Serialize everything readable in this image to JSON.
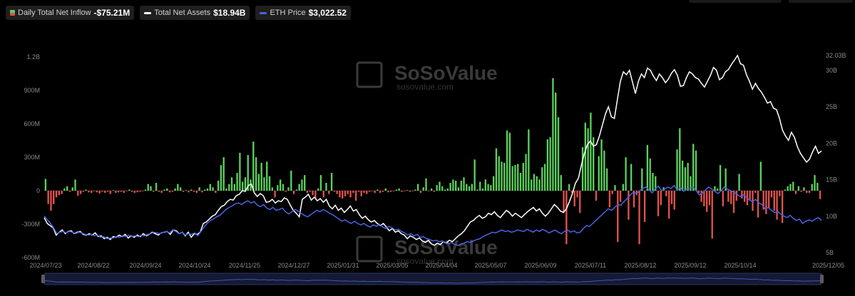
{
  "legend": {
    "inflow_label": "Daily Total Net Inflow",
    "inflow_value": "-$75.21M",
    "assets_label": "Total Net Assets",
    "assets_value": "$18.94B",
    "price_label": "ETH Price",
    "price_value": "$3,022.52"
  },
  "watermark": {
    "brand": "SoSoValue",
    "url": "sosovalue.com"
  },
  "colors": {
    "inflow_positive": "#5bd05b",
    "inflow_negative": "#e0524b",
    "net_assets": "#ffffff",
    "eth_price": "#4a63e0",
    "axis_text": "#8a8a8a",
    "background": "#000000"
  },
  "chart_data": {
    "type": "bar",
    "x_axis_ticks": [
      "2024/07/23",
      "2024/08/22",
      "2024/09/24",
      "2024/10/24",
      "2024/11/25",
      "2024/12/27",
      "2025/01/31",
      "2025/03/05",
      "2025/04/04",
      "2025/05/07",
      "2025/06/09",
      "2025/07/11",
      "2025/08/12",
      "2025/09/12",
      "2025/10/14",
      "2025/12/05"
    ],
    "left_axis": {
      "ticks": [
        "1.2B",
        "900M",
        "600M",
        "300M",
        "0",
        "-300M",
        "-600M"
      ],
      "ylim": [
        -600,
        1200
      ],
      "unit": "M USD"
    },
    "right_axis": {
      "ticks": [
        "32.03B",
        "30B",
        "25B",
        "20B",
        "15B",
        "10B",
        "5B"
      ],
      "ylim": [
        5,
        32.03
      ],
      "unit": "B USD"
    },
    "bars_millions": [
      106,
      -120,
      -180,
      -120,
      -60,
      -40,
      -30,
      20,
      40,
      -10,
      30,
      100,
      -45,
      -30,
      -10,
      10,
      -15,
      -20,
      -5,
      -15,
      -25,
      -10,
      -20,
      -10,
      -30,
      5,
      -20,
      -15,
      -10,
      -20,
      -5,
      10,
      -10,
      -20,
      -15,
      -10,
      -5,
      10,
      60,
      40,
      -10,
      70,
      -10,
      -20,
      10,
      20,
      -15,
      -10,
      20,
      60,
      30,
      -10,
      5,
      -15,
      10,
      -10,
      -20,
      30,
      -15,
      10,
      20,
      60,
      30,
      -20,
      90,
      230,
      300,
      20,
      60,
      120,
      60,
      160,
      340,
      80,
      120,
      320,
      100,
      440,
      300,
      150,
      250,
      120,
      260,
      130,
      30,
      -60,
      50,
      100,
      60,
      -10,
      30,
      180,
      -30,
      10,
      60,
      100,
      140,
      -20,
      -10,
      -40,
      -70,
      20,
      140,
      -60,
      70,
      -30,
      160,
      -10,
      -30,
      -60,
      -70,
      -50,
      -30,
      -60,
      -20,
      -90,
      -10,
      -50,
      -20,
      -30,
      -10,
      -5,
      -20,
      10,
      -20,
      -10,
      20,
      -15,
      -10,
      -5,
      10,
      20,
      -10,
      -5,
      5,
      -10,
      -5,
      10,
      60,
      -20,
      30,
      110,
      -5,
      20,
      -10,
      50,
      80,
      40,
      10,
      20,
      70,
      100,
      90,
      30,
      90,
      120,
      60,
      40,
      60,
      280,
      10,
      80,
      20,
      100,
      60,
      50,
      130,
      380,
      310,
      260,
      250,
      540,
      520,
      220,
      230,
      240,
      160,
      250,
      330,
      550,
      100,
      150,
      130,
      100,
      210,
      240,
      460,
      480,
      1010,
      880,
      660,
      140,
      -200,
      -480,
      60,
      -20,
      -140,
      -60,
      -200,
      390,
      610,
      560,
      700,
      480,
      -90,
      310,
      460,
      360,
      200,
      -150,
      -30,
      50,
      -460,
      -100,
      60,
      300,
      -260,
      240,
      -150,
      -40,
      -480,
      200,
      -280,
      410,
      290,
      160,
      130,
      -230,
      -130,
      30,
      -50,
      -250,
      -120,
      -170,
      370,
      560,
      270,
      210,
      250,
      130,
      420,
      360,
      -20,
      -100,
      -140,
      -190,
      -130,
      -430,
      40,
      20,
      230,
      -140,
      200,
      -100,
      -120,
      -200,
      -90,
      150,
      -70,
      -100,
      -130,
      -80,
      -180,
      -20,
      -240,
      260,
      -170,
      -210,
      -160,
      -60,
      -180,
      -260,
      -50,
      -290,
      10,
      40,
      60,
      80,
      -30,
      40,
      -10,
      30,
      -20,
      -20,
      60,
      140,
      70,
      -75
    ],
    "net_assets_billions": [
      9.8,
      9.0,
      8.7,
      8.4,
      7.4,
      7.8,
      8.1,
      7.6,
      7.9,
      8.0,
      7.6,
      7.8,
      7.9,
      7.5,
      7.4,
      7.6,
      7.4,
      7.7,
      7.2,
      7.3,
      6.9,
      7.1,
      6.8,
      7.2,
      7.1,
      7.4,
      7.2,
      7.5,
      7.0,
      7.3,
      7.1,
      7.4,
      7.2,
      7.6,
      7.3,
      7.5,
      7.8,
      7.6,
      7.4,
      7.7,
      7.8,
      7.9,
      7.5,
      8.1,
      8.0,
      7.6,
      7.8,
      7.3,
      7.8,
      7.1,
      7.6,
      7.5,
      7.8,
      9.0,
      9.2,
      9.6,
      10.0,
      10.2,
      10.8,
      11.3,
      11.5,
      12.0,
      12.3,
      12.2,
      12.8,
      13.0,
      13.5,
      13.4,
      14.2,
      14.4,
      13.2,
      12.7,
      13.1,
      12.8,
      11.9,
      12.0,
      12.3,
      11.8,
      12.1,
      12.0,
      12.5,
      12.3,
      11.5,
      10.8,
      10.4,
      9.9,
      12.3,
      12.6,
      13.0,
      12.2,
      12.6,
      12.1,
      12.4,
      11.9,
      12.3,
      11.4,
      11.0,
      11.5,
      10.8,
      11.1,
      10.5,
      10.9,
      11.4,
      10.7,
      10.9,
      10.2,
      9.7,
      10.0,
      9.5,
      9.2,
      9.4,
      9.0,
      8.7,
      9.0,
      8.5,
      8.0,
      8.3,
      7.8,
      8.0,
      7.6,
      7.4,
      6.9,
      7.3,
      7.1,
      6.8,
      7.0,
      6.6,
      6.4,
      6.7,
      6.2,
      6.0,
      6.3,
      6.1,
      6.5,
      6.3,
      6.7,
      6.5,
      6.9,
      7.3,
      7.6,
      8.0,
      8.6,
      9.2,
      9.4,
      9.8,
      10.1,
      9.7,
      9.9,
      10.4,
      10.2,
      10.6,
      10.1,
      9.8,
      10.3,
      10.8,
      10.5,
      10.0,
      10.4,
      10.1,
      9.8,
      10.2,
      10.6,
      10.9,
      11.2,
      10.7,
      11.0,
      10.4,
      10.0,
      10.4,
      11.0,
      11.6,
      11.2,
      10.7,
      10.5,
      11.0,
      12.0,
      13.1,
      14.5,
      15.2,
      17.0,
      18.6,
      19.8,
      20.3,
      19.6,
      19.8,
      21.0,
      22.5,
      24.0,
      25.0,
      23.6,
      23.4,
      26.0,
      28.5,
      29.8,
      29.4,
      30.0,
      28.4,
      26.8,
      28.5,
      29.5,
      29.0,
      30.3,
      30.0,
      29.2,
      28.6,
      29.5,
      29.0,
      28.3,
      28.8,
      29.6,
      30.1,
      29.3,
      27.8,
      27.9,
      29.0,
      29.8,
      29.5,
      29.0,
      28.8,
      28.2,
      27.7,
      28.5,
      29.3,
      30.4,
      30.0,
      28.7,
      29.0,
      29.8,
      30.1,
      30.8,
      31.4,
      32.03,
      30.9,
      30.7,
      29.4,
      28.5,
      27.4,
      28.2,
      27.5,
      27.0,
      26.3,
      25.5,
      25.7,
      24.8,
      24.6,
      23.4,
      21.8,
      21.0,
      20.4,
      21.5,
      20.8,
      19.5,
      18.6,
      18.0,
      17.4,
      17.8,
      18.8,
      19.6,
      18.6,
      18.94
    ],
    "eth_price_billions_scale": [
      10.0,
      9.5,
      9.0,
      8.4,
      7.6,
      7.8,
      7.9,
      7.7,
      7.9,
      7.8,
      7.6,
      7.8,
      7.7,
      7.5,
      7.4,
      7.5,
      7.3,
      7.4,
      7.1,
      7.2,
      6.9,
      7.0,
      7.0,
      7.2,
      7.1,
      7.3,
      7.2,
      7.4,
      7.2,
      7.3,
      7.2,
      7.4,
      7.3,
      7.5,
      7.6,
      7.8,
      7.7,
      7.6,
      7.8,
      7.9,
      7.7,
      8.1,
      7.9,
      7.6,
      7.8,
      7.4,
      7.6,
      7.5,
      7.7,
      7.3,
      7.9,
      8.5,
      9.0,
      9.4,
      9.6,
      9.9,
      10.1,
      10.5,
      10.9,
      11.2,
      11.4,
      11.7,
      11.8,
      11.6,
      11.9,
      12.1,
      11.8,
      12.0,
      11.5,
      11.3,
      11.6,
      11.1,
      10.9,
      11.2,
      10.8,
      10.9,
      11.1,
      10.6,
      10.3,
      10.6,
      10.9,
      10.7,
      10.4,
      10.1,
      9.9,
      10.2,
      10.5,
      10.8,
      10.6,
      10.9,
      10.7,
      10.4,
      10.2,
      9.9,
      9.6,
      9.3,
      9.5,
      9.2,
      9.0,
      9.3,
      9.0,
      8.8,
      9.0,
      8.7,
      8.5,
      8.8,
      8.6,
      8.9,
      8.5,
      8.3,
      8.6,
      8.4,
      8.1,
      8.2,
      7.9,
      7.7,
      7.4,
      7.6,
      7.3,
      7.5,
      7.1,
      7.2,
      6.9,
      6.8,
      6.6,
      6.7,
      6.5,
      6.6,
      6.3,
      6.2,
      6.4,
      6.1,
      6.0,
      6.2,
      6.3,
      6.5,
      6.4,
      6.6,
      6.8,
      6.9,
      7.2,
      7.4,
      7.6,
      7.8,
      7.7,
      7.9,
      8.1,
      7.9,
      8.0,
      7.8,
      7.9,
      8.1,
      8.0,
      7.9,
      8.2,
      8.0,
      7.8,
      8.1,
      7.9,
      8.2,
      8.0,
      7.7,
      7.9,
      8.1,
      7.8,
      7.6,
      7.9,
      8.1,
      7.8,
      8.0,
      7.7,
      7.8,
      8.3,
      8.7,
      8.6,
      9.0,
      9.4,
      9.8,
      10.2,
      10.6,
      11.0,
      10.8,
      11.2,
      11.6,
      11.5,
      12.0,
      12.4,
      12.9,
      13.3,
      13.1,
      13.5,
      13.8,
      14.0,
      13.6,
      13.2,
      13.8,
      14.1,
      13.5,
      13.7,
      14.0,
      13.8,
      14.2,
      13.6,
      13.9,
      13.4,
      13.7,
      13.8,
      14.0,
      13.5,
      12.9,
      13.2,
      13.6,
      14.0,
      13.7,
      13.4,
      13.1,
      13.5,
      14.0,
      13.7,
      13.5,
      13.3,
      13.0,
      12.7,
      12.9,
      12.6,
      12.2,
      12.0,
      12.3,
      11.8,
      11.6,
      11.0,
      11.2,
      10.8,
      10.5,
      10.6,
      10.3,
      10.0,
      9.8,
      10.1,
      9.7,
      9.4,
      9.6,
      9.0,
      9.3,
      9.5,
      9.3,
      9.6,
      9.8,
      9.4
    ]
  }
}
